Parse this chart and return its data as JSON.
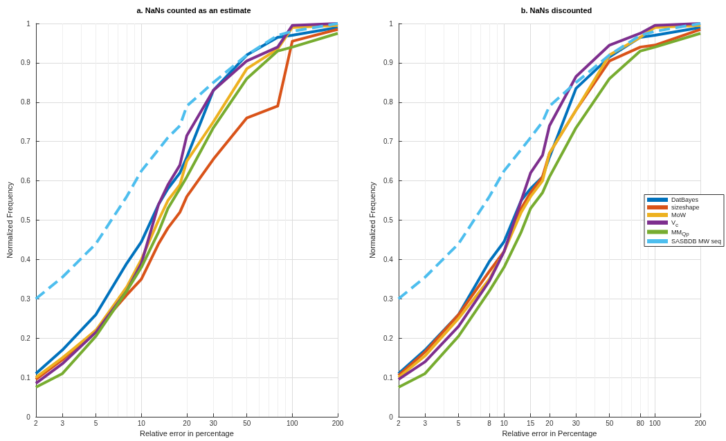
{
  "chart_data": [
    {
      "type": "line",
      "title": "a. NaNs counted as an estimate",
      "xlabel": "Relative error in percentage",
      "ylabel": "Normalized Frequency",
      "log": "x",
      "x": [
        2,
        3,
        5,
        8,
        10,
        13,
        15,
        18,
        20,
        30,
        50,
        80,
        100,
        200
      ],
      "xlim": [
        2,
        200
      ],
      "xticks": [
        2,
        3,
        5,
        10,
        20,
        30,
        50,
        100,
        200
      ],
      "ylim": [
        0,
        1
      ],
      "yticks": [
        0,
        0.1,
        0.2,
        0.3,
        0.4,
        0.5,
        0.6,
        0.7,
        0.8,
        0.9,
        1
      ],
      "grid": true,
      "legend": false,
      "marker": "none",
      "series": [
        {
          "color": "#0072bd",
          "line_style": "solid",
          "values": [
            0.11,
            0.17,
            0.26,
            0.39,
            0.445,
            0.54,
            0.58,
            0.62,
            0.66,
            0.83,
            0.92,
            0.965,
            0.97,
            0.99
          ]
        },
        {
          "color": "#d95319",
          "line_style": "solid",
          "values": [
            0.095,
            0.145,
            0.22,
            0.31,
            0.35,
            0.44,
            0.48,
            0.52,
            0.56,
            0.655,
            0.76,
            0.79,
            0.955,
            0.985
          ]
        },
        {
          "color": "#edb120",
          "line_style": "solid",
          "values": [
            0.1,
            0.15,
            0.22,
            0.33,
            0.4,
            0.5,
            0.55,
            0.59,
            0.65,
            0.75,
            0.885,
            0.935,
            0.99,
            0.995
          ]
        },
        {
          "color": "#7e2f8e",
          "line_style": "solid",
          "values": [
            0.085,
            0.135,
            0.215,
            0.32,
            0.39,
            0.54,
            0.59,
            0.64,
            0.715,
            0.83,
            0.905,
            0.94,
            0.995,
            1.0
          ]
        },
        {
          "color": "#77ac30",
          "line_style": "solid",
          "values": [
            0.075,
            0.11,
            0.205,
            0.32,
            0.38,
            0.47,
            0.53,
            0.58,
            0.61,
            0.735,
            0.86,
            0.93,
            0.94,
            0.975
          ]
        },
        {
          "color": "#4dbeee",
          "line_style": "dashed",
          "values": [
            0.3,
            0.355,
            0.44,
            0.56,
            0.625,
            0.68,
            0.71,
            0.74,
            0.79,
            0.85,
            0.92,
            0.97,
            0.98,
            1.0
          ]
        }
      ]
    },
    {
      "type": "line",
      "title": "b. NaNs discounted",
      "xlabel": "Relative error in Percentage",
      "ylabel": "Normalized Frequency",
      "log": "x",
      "x": [
        2,
        3,
        5,
        8,
        10,
        13,
        15,
        18,
        20,
        30,
        50,
        80,
        100,
        200
      ],
      "xlim": [
        2,
        200
      ],
      "xticks": [
        2,
        3,
        5,
        8,
        10,
        15,
        20,
        30,
        50,
        80,
        100,
        200
      ],
      "ylim": [
        0,
        1
      ],
      "yticks": [
        0,
        0.1,
        0.2,
        0.3,
        0.4,
        0.5,
        0.6,
        0.7,
        0.8,
        0.9,
        1
      ],
      "grid": true,
      "legend": "right",
      "marker": "none",
      "series": [
        {
          "name": "DatBayes",
          "color": "#0072bd",
          "line_style": "solid",
          "values": [
            0.11,
            0.17,
            0.26,
            0.395,
            0.445,
            0.55,
            0.58,
            0.61,
            0.66,
            0.835,
            0.915,
            0.965,
            0.97,
            0.99
          ]
        },
        {
          "name": "sizeshape",
          "color": "#d95319",
          "line_style": "solid",
          "values": [
            0.105,
            0.165,
            0.26,
            0.37,
            0.42,
            0.53,
            0.57,
            0.61,
            0.67,
            0.78,
            0.905,
            0.94,
            0.945,
            0.985
          ]
        },
        {
          "name": "MoW",
          "color": "#edb120",
          "line_style": "solid",
          "values": [
            0.1,
            0.155,
            0.25,
            0.35,
            0.42,
            0.52,
            0.56,
            0.6,
            0.67,
            0.78,
            0.92,
            0.965,
            0.99,
            0.995
          ]
        },
        {
          "name": "V$_{c}$",
          "color": "#7e2f8e",
          "line_style": "solid",
          "values": [
            0.095,
            0.14,
            0.23,
            0.345,
            0.42,
            0.55,
            0.62,
            0.665,
            0.74,
            0.865,
            0.945,
            0.975,
            0.995,
            1.0
          ]
        },
        {
          "name": "MM$_{Qp}$",
          "color": "#77ac30",
          "line_style": "solid",
          "values": [
            0.075,
            0.11,
            0.205,
            0.32,
            0.38,
            0.47,
            0.53,
            0.57,
            0.61,
            0.735,
            0.86,
            0.93,
            0.94,
            0.975
          ]
        },
        {
          "name": "SASBDB MW seq",
          "color": "#4dbeee",
          "line_style": "dashed",
          "values": [
            0.3,
            0.355,
            0.44,
            0.56,
            0.625,
            0.68,
            0.71,
            0.75,
            0.79,
            0.85,
            0.92,
            0.97,
            0.98,
            1.0
          ]
        }
      ]
    }
  ]
}
